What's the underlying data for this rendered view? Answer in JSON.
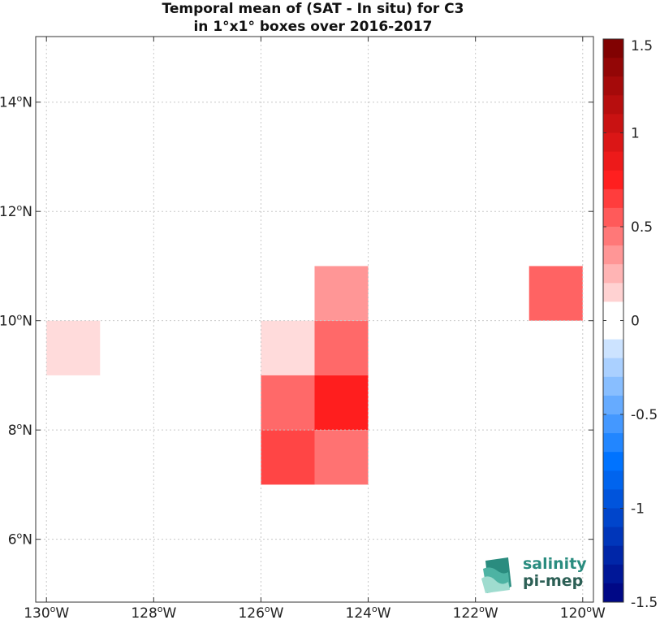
{
  "chart_data": {
    "type": "heatmap",
    "title": [
      "Temporal mean of (SAT - In situ) for C3",
      "in 1°x1° boxes over 2016-2017"
    ],
    "x_ticks": [
      {
        "value": -130,
        "label": "130",
        "suffix": "W"
      },
      {
        "value": -128,
        "label": "128",
        "suffix": "W"
      },
      {
        "value": -126,
        "label": "126",
        "suffix": "W"
      },
      {
        "value": -124,
        "label": "124",
        "suffix": "W"
      },
      {
        "value": -122,
        "label": "122",
        "suffix": "W"
      },
      {
        "value": -120,
        "label": "120",
        "suffix": "W"
      }
    ],
    "y_ticks": [
      {
        "value": 6,
        "label": "6",
        "suffix": "N"
      },
      {
        "value": 8,
        "label": "8",
        "suffix": "N"
      },
      {
        "value": 10,
        "label": "10",
        "suffix": "N"
      },
      {
        "value": 12,
        "label": "12",
        "suffix": "N"
      },
      {
        "value": 14,
        "label": "14",
        "suffix": "N"
      }
    ],
    "xlim": [
      -130.2,
      -119.8
    ],
    "ylim": [
      4.85,
      15.2
    ],
    "grid": true,
    "cells": [
      {
        "lon": -130,
        "lat": 9,
        "value": 0.12
      },
      {
        "lon": -126,
        "lat": 9,
        "value": 0.12
      },
      {
        "lon": -125,
        "lat": 10,
        "value": 0.35
      },
      {
        "lon": -125,
        "lat": 9,
        "value": 0.5
      },
      {
        "lon": -126,
        "lat": 8,
        "value": 0.5
      },
      {
        "lon": -125,
        "lat": 8,
        "value": 0.75
      },
      {
        "lon": -126,
        "lat": 7,
        "value": 0.62
      },
      {
        "lon": -125,
        "lat": 7,
        "value": 0.47
      },
      {
        "lon": -121,
        "lat": 10,
        "value": 0.52
      }
    ],
    "colorbar": {
      "min": -1.5,
      "max": 1.5,
      "ticks": [
        {
          "value": 1.5,
          "label": "1.5"
        },
        {
          "value": 1,
          "label": "1"
        },
        {
          "value": 0.5,
          "label": "0.5"
        },
        {
          "value": 0,
          "label": "0"
        },
        {
          "value": -0.5,
          "label": "-0.5"
        },
        {
          "value": -1,
          "label": "-1"
        },
        {
          "value": -1.5,
          "label": "-1.5"
        }
      ]
    }
  },
  "logo": {
    "line1": "salinity",
    "line2": "pi-mep"
  }
}
